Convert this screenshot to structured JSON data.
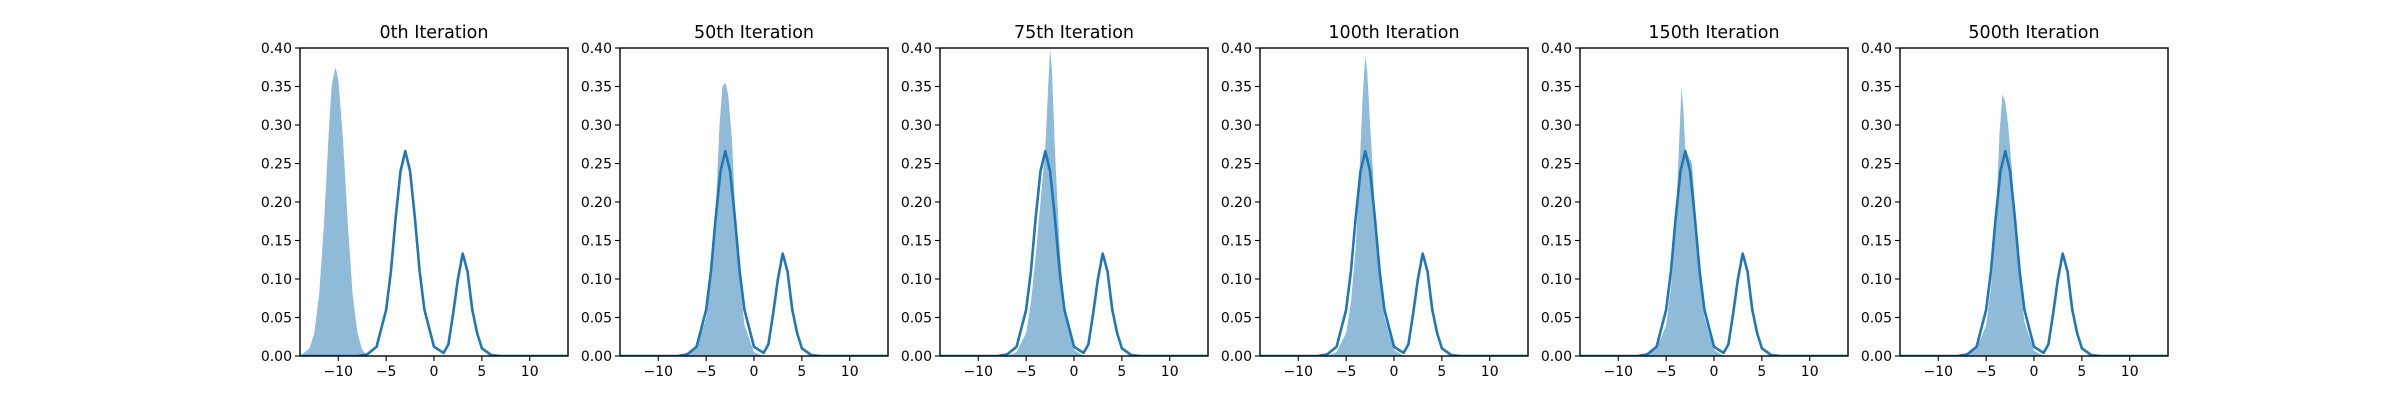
{
  "chart_data": [
    {
      "type": "area",
      "title": "0th Iteration",
      "xlim": [
        -14,
        14
      ],
      "ylim": [
        0,
        0.4
      ],
      "xticks": [
        -10,
        -5,
        0,
        5,
        10
      ],
      "yticks": [
        0.0,
        0.05,
        0.1,
        0.15,
        0.2,
        0.25,
        0.3,
        0.35,
        0.4
      ],
      "xtick_labels": [
        "−10",
        "−5",
        "0",
        "5",
        "10"
      ],
      "ytick_labels": [
        "0.00",
        "0.05",
        "0.10",
        "0.15",
        "0.20",
        "0.25",
        "0.30",
        "0.35",
        "0.40"
      ],
      "series": [
        {
          "kind": "filled-density",
          "color": "#1f77b4",
          "opacity": 0.5,
          "x": [
            -14,
            -13,
            -12.5,
            -12,
            -11.5,
            -11,
            -10.7,
            -10.3,
            -10,
            -9.5,
            -9,
            -8.5,
            -8,
            -7.5,
            -7,
            -14
          ],
          "y": [
            0.0,
            0.01,
            0.03,
            0.08,
            0.17,
            0.29,
            0.35,
            0.375,
            0.36,
            0.28,
            0.17,
            0.08,
            0.03,
            0.008,
            0.0,
            0.0
          ]
        },
        {
          "kind": "target-density",
          "color": "#1f77b4",
          "x": [
            -14,
            -8,
            -7,
            -6,
            -5,
            -4.5,
            -4,
            -3.5,
            -3,
            -2.5,
            -2,
            -1.5,
            -1,
            0,
            1,
            1.5,
            2,
            2.5,
            3,
            3.5,
            4,
            4.5,
            5,
            6,
            7,
            14
          ],
          "y": [
            0.0,
            0.0,
            0.002,
            0.012,
            0.06,
            0.11,
            0.18,
            0.24,
            0.266,
            0.24,
            0.18,
            0.11,
            0.06,
            0.012,
            0.004,
            0.015,
            0.055,
            0.1,
            0.133,
            0.11,
            0.06,
            0.03,
            0.01,
            0.001,
            0.0,
            0.0
          ]
        }
      ]
    },
    {
      "type": "area",
      "title": "50th Iteration",
      "xlim": [
        -14,
        14
      ],
      "ylim": [
        0,
        0.4
      ],
      "xticks": [
        -10,
        -5,
        0,
        5,
        10
      ],
      "yticks": [
        0.0,
        0.05,
        0.1,
        0.15,
        0.2,
        0.25,
        0.3,
        0.35,
        0.4
      ],
      "xtick_labels": [
        "−10",
        "−5",
        "0",
        "5",
        "10"
      ],
      "ytick_labels": [
        "0.00",
        "0.05",
        "0.10",
        "0.15",
        "0.20",
        "0.25",
        "0.30",
        "0.35",
        "0.40"
      ],
      "series": [
        {
          "kind": "filled-density",
          "color": "#1f77b4",
          "opacity": 0.5,
          "x": [
            -14,
            -7,
            -6,
            -5,
            -4.5,
            -4,
            -3.6,
            -3.3,
            -3,
            -2.7,
            -2.3,
            -2,
            -1.5,
            -1,
            0,
            1,
            14
          ],
          "y": [
            0.0,
            0.0,
            0.01,
            0.05,
            0.1,
            0.19,
            0.3,
            0.35,
            0.355,
            0.34,
            0.28,
            0.2,
            0.1,
            0.04,
            0.005,
            0.0,
            0.0
          ]
        },
        {
          "kind": "target-density",
          "color": "#1f77b4",
          "x": [
            -14,
            -8,
            -7,
            -6,
            -5,
            -4.5,
            -4,
            -3.5,
            -3,
            -2.5,
            -2,
            -1.5,
            -1,
            0,
            1,
            1.5,
            2,
            2.5,
            3,
            3.5,
            4,
            4.5,
            5,
            6,
            7,
            14
          ],
          "y": [
            0.0,
            0.0,
            0.002,
            0.012,
            0.06,
            0.11,
            0.18,
            0.24,
            0.266,
            0.24,
            0.18,
            0.11,
            0.06,
            0.012,
            0.004,
            0.015,
            0.055,
            0.1,
            0.133,
            0.11,
            0.06,
            0.03,
            0.01,
            0.001,
            0.0,
            0.0
          ]
        }
      ]
    },
    {
      "type": "area",
      "title": "75th Iteration",
      "xlim": [
        -14,
        14
      ],
      "ylim": [
        0,
        0.4
      ],
      "xticks": [
        -10,
        -5,
        0,
        5,
        10
      ],
      "yticks": [
        0.0,
        0.05,
        0.1,
        0.15,
        0.2,
        0.25,
        0.3,
        0.35,
        0.4
      ],
      "xtick_labels": [
        "−10",
        "−5",
        "0",
        "5",
        "10"
      ],
      "ytick_labels": [
        "0.00",
        "0.05",
        "0.10",
        "0.15",
        "0.20",
        "0.25",
        "0.30",
        "0.35",
        "0.40"
      ],
      "series": [
        {
          "kind": "filled-density",
          "color": "#1f77b4",
          "opacity": 0.5,
          "x": [
            -14,
            -7,
            -6,
            -5,
            -4.5,
            -4,
            -3.5,
            -3,
            -2.7,
            -2.5,
            -2.3,
            -2,
            -1.5,
            -1,
            0,
            1,
            14
          ],
          "y": [
            0.0,
            0.0,
            0.005,
            0.03,
            0.07,
            0.13,
            0.2,
            0.27,
            0.35,
            0.4,
            0.37,
            0.27,
            0.14,
            0.06,
            0.008,
            0.0,
            0.0
          ]
        },
        {
          "kind": "target-density",
          "color": "#1f77b4",
          "x": [
            -14,
            -8,
            -7,
            -6,
            -5,
            -4.5,
            -4,
            -3.5,
            -3,
            -2.5,
            -2,
            -1.5,
            -1,
            0,
            1,
            1.5,
            2,
            2.5,
            3,
            3.5,
            4,
            4.5,
            5,
            6,
            7,
            14
          ],
          "y": [
            0.0,
            0.0,
            0.002,
            0.012,
            0.06,
            0.11,
            0.18,
            0.24,
            0.266,
            0.24,
            0.18,
            0.11,
            0.06,
            0.012,
            0.004,
            0.015,
            0.055,
            0.1,
            0.133,
            0.11,
            0.06,
            0.03,
            0.01,
            0.001,
            0.0,
            0.0
          ]
        }
      ]
    },
    {
      "type": "area",
      "title": "100th Iteration",
      "xlim": [
        -14,
        14
      ],
      "ylim": [
        0,
        0.4
      ],
      "xticks": [
        -10,
        -5,
        0,
        5,
        10
      ],
      "yticks": [
        0.0,
        0.05,
        0.1,
        0.15,
        0.2,
        0.25,
        0.3,
        0.35,
        0.4
      ],
      "xtick_labels": [
        "−10",
        "−5",
        "0",
        "5",
        "10"
      ],
      "ytick_labels": [
        "0.00",
        "0.05",
        "0.10",
        "0.15",
        "0.20",
        "0.25",
        "0.30",
        "0.35",
        "0.40"
      ],
      "series": [
        {
          "kind": "filled-density",
          "color": "#1f77b4",
          "opacity": 0.5,
          "x": [
            -14,
            -7,
            -6,
            -5,
            -4.5,
            -4,
            -3.6,
            -3.3,
            -3,
            -2.8,
            -2.5,
            -2.2,
            -2,
            -1.5,
            -1,
            0,
            1,
            14
          ],
          "y": [
            0.0,
            0.0,
            0.005,
            0.03,
            0.07,
            0.14,
            0.24,
            0.33,
            0.39,
            0.37,
            0.3,
            0.24,
            0.19,
            0.11,
            0.05,
            0.008,
            0.0,
            0.0
          ]
        },
        {
          "kind": "target-density",
          "color": "#1f77b4",
          "x": [
            -14,
            -8,
            -7,
            -6,
            -5,
            -4.5,
            -4,
            -3.5,
            -3,
            -2.5,
            -2,
            -1.5,
            -1,
            0,
            1,
            1.5,
            2,
            2.5,
            3,
            3.5,
            4,
            4.5,
            5,
            6,
            7,
            14
          ],
          "y": [
            0.0,
            0.0,
            0.002,
            0.012,
            0.06,
            0.11,
            0.18,
            0.24,
            0.266,
            0.24,
            0.18,
            0.11,
            0.06,
            0.012,
            0.004,
            0.015,
            0.055,
            0.1,
            0.133,
            0.11,
            0.06,
            0.03,
            0.01,
            0.001,
            0.0,
            0.0
          ]
        }
      ]
    },
    {
      "type": "area",
      "title": "150th Iteration",
      "xlim": [
        -14,
        14
      ],
      "ylim": [
        0,
        0.4
      ],
      "xticks": [
        -10,
        -5,
        0,
        5,
        10
      ],
      "yticks": [
        0.0,
        0.05,
        0.1,
        0.15,
        0.2,
        0.25,
        0.3,
        0.35,
        0.4
      ],
      "xtick_labels": [
        "−10",
        "−5",
        "0",
        "5",
        "10"
      ],
      "ytick_labels": [
        "0.00",
        "0.05",
        "0.10",
        "0.15",
        "0.20",
        "0.25",
        "0.30",
        "0.35",
        "0.40"
      ],
      "series": [
        {
          "kind": "filled-density",
          "color": "#1f77b4",
          "opacity": 0.5,
          "x": [
            -14,
            -7,
            -6,
            -5,
            -4.5,
            -4,
            -3.6,
            -3.4,
            -3.2,
            -3,
            -2.7,
            -2.3,
            -2,
            -1.5,
            -1,
            0,
            1,
            14
          ],
          "y": [
            0.0,
            0.0,
            0.01,
            0.04,
            0.09,
            0.17,
            0.29,
            0.35,
            0.32,
            0.27,
            0.26,
            0.25,
            0.2,
            0.11,
            0.05,
            0.008,
            0.0,
            0.0
          ]
        },
        {
          "kind": "target-density",
          "color": "#1f77b4",
          "x": [
            -14,
            -8,
            -7,
            -6,
            -5,
            -4.5,
            -4,
            -3.5,
            -3,
            -2.5,
            -2,
            -1.5,
            -1,
            0,
            1,
            1.5,
            2,
            2.5,
            3,
            3.5,
            4,
            4.5,
            5,
            6,
            7,
            14
          ],
          "y": [
            0.0,
            0.0,
            0.002,
            0.012,
            0.06,
            0.11,
            0.18,
            0.24,
            0.266,
            0.24,
            0.18,
            0.11,
            0.06,
            0.012,
            0.004,
            0.015,
            0.055,
            0.1,
            0.133,
            0.11,
            0.06,
            0.03,
            0.01,
            0.001,
            0.0,
            0.0
          ]
        }
      ]
    },
    {
      "type": "area",
      "title": "500th Iteration",
      "xlim": [
        -14,
        14
      ],
      "ylim": [
        0,
        0.4
      ],
      "xticks": [
        -10,
        -5,
        0,
        5,
        10
      ],
      "yticks": [
        0.0,
        0.05,
        0.1,
        0.15,
        0.2,
        0.25,
        0.3,
        0.35,
        0.4
      ],
      "xtick_labels": [
        "−10",
        "−5",
        "0",
        "5",
        "10"
      ],
      "ytick_labels": [
        "0.00",
        "0.05",
        "0.10",
        "0.15",
        "0.20",
        "0.25",
        "0.30",
        "0.35",
        "0.40"
      ],
      "series": [
        {
          "kind": "filled-density",
          "color": "#1f77b4",
          "opacity": 0.5,
          "x": [
            -14,
            -7,
            -6,
            -5,
            -4.5,
            -4,
            -3.6,
            -3.3,
            -3,
            -2.7,
            -2.3,
            -2,
            -1.5,
            -1,
            0,
            1,
            14
          ],
          "y": [
            0.0,
            0.0,
            0.01,
            0.04,
            0.09,
            0.17,
            0.29,
            0.34,
            0.33,
            0.3,
            0.24,
            0.18,
            0.1,
            0.045,
            0.007,
            0.0,
            0.0
          ]
        },
        {
          "kind": "target-density",
          "color": "#1f77b4",
          "x": [
            -14,
            -8,
            -7,
            -6,
            -5,
            -4.5,
            -4,
            -3.5,
            -3,
            -2.5,
            -2,
            -1.5,
            -1,
            0,
            1,
            1.5,
            2,
            2.5,
            3,
            3.5,
            4,
            4.5,
            5,
            6,
            7,
            14
          ],
          "y": [
            0.0,
            0.0,
            0.002,
            0.012,
            0.06,
            0.11,
            0.18,
            0.24,
            0.266,
            0.24,
            0.18,
            0.11,
            0.06,
            0.012,
            0.004,
            0.015,
            0.055,
            0.1,
            0.133,
            0.11,
            0.06,
            0.03,
            0.01,
            0.001,
            0.0,
            0.0
          ]
        }
      ]
    }
  ]
}
